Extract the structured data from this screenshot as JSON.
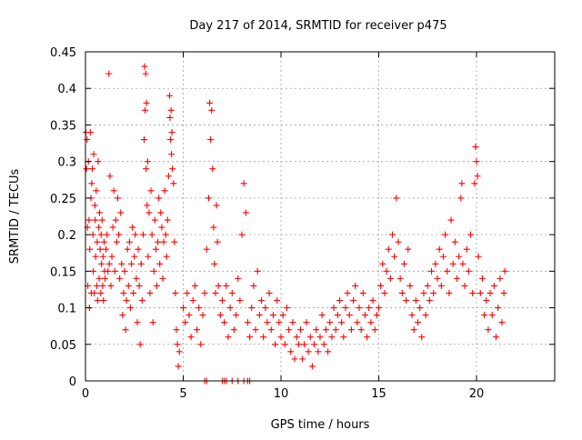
{
  "chart_data": {
    "type": "scatter",
    "title": "Day 217 of 2014, SRMTID for receiver p475",
    "xlabel": "GPS time / hours",
    "ylabel": "SRMTID / TECUs",
    "xlim": [
      0,
      24
    ],
    "ylim": [
      0,
      0.45
    ],
    "x_ticks": [
      0,
      5,
      10,
      15,
      20
    ],
    "y_ticks": [
      0,
      0.05,
      0.1,
      0.15,
      0.2,
      0.25,
      0.3,
      0.35,
      0.4,
      0.45
    ],
    "x_tick_labels": [
      "0",
      "5",
      "10",
      "15",
      "20"
    ],
    "y_tick_labels": [
      "0",
      "0.05",
      "0.1",
      "0.15",
      "0.2",
      "0.25",
      "0.3",
      "0.35",
      "0.4",
      "0.45"
    ],
    "grid": true,
    "marker": "+",
    "color": "#ff0000",
    "series": [
      {
        "name": "SRMTID p475",
        "points": [
          [
            0.02,
            0.34
          ],
          [
            0.05,
            0.29
          ],
          [
            0.08,
            0.33
          ],
          [
            0.1,
            0.21
          ],
          [
            0.12,
            0.13
          ],
          [
            0.15,
            0.3
          ],
          [
            0.18,
            0.22
          ],
          [
            0.2,
            0.1
          ],
          [
            0.22,
            0.18
          ],
          [
            0.25,
            0.34
          ],
          [
            0.28,
            0.25
          ],
          [
            0.3,
            0.12
          ],
          [
            0.32,
            0.27
          ],
          [
            0.35,
            0.29
          ],
          [
            0.38,
            0.2
          ],
          [
            0.4,
            0.15
          ],
          [
            0.42,
            0.31
          ],
          [
            0.45,
            0.12
          ],
          [
            0.48,
            0.24
          ],
          [
            0.5,
            0.22
          ],
          [
            0.52,
            0.17
          ],
          [
            0.55,
            0.26
          ],
          [
            0.58,
            0.13
          ],
          [
            0.6,
            0.19
          ],
          [
            0.62,
            0.11
          ],
          [
            0.65,
            0.3
          ],
          [
            0.68,
            0.21
          ],
          [
            0.7,
            0.14
          ],
          [
            0.72,
            0.23
          ],
          [
            0.75,
            0.18
          ],
          [
            0.78,
            0.12
          ],
          [
            0.8,
            0.2
          ],
          [
            0.82,
            0.16
          ],
          [
            0.85,
            0.22
          ],
          [
            0.88,
            0.13
          ],
          [
            0.9,
            0.17
          ],
          [
            0.92,
            0.11
          ],
          [
            0.95,
            0.19
          ],
          [
            0.98,
            0.15
          ],
          [
            1.0,
            0.14
          ],
          [
            1.05,
            0.18
          ],
          [
            1.1,
            0.2
          ],
          [
            1.15,
            0.15
          ],
          [
            1.2,
            0.42
          ],
          [
            1.22,
            0.16
          ],
          [
            1.25,
            0.28
          ],
          [
            1.3,
            0.13
          ],
          [
            1.35,
            0.17
          ],
          [
            1.4,
            0.21
          ],
          [
            1.45,
            0.26
          ],
          [
            1.5,
            0.15
          ],
          [
            1.55,
            0.22
          ],
          [
            1.6,
            0.19
          ],
          [
            1.65,
            0.25
          ],
          [
            1.7,
            0.2
          ],
          [
            1.75,
            0.14
          ],
          [
            1.8,
            0.23
          ],
          [
            1.85,
            0.16
          ],
          [
            1.9,
            0.09
          ],
          [
            1.95,
            0.12
          ],
          [
            2.0,
            0.15
          ],
          [
            2.05,
            0.07
          ],
          [
            2.1,
            0.11
          ],
          [
            2.15,
            0.18
          ],
          [
            2.2,
            0.13
          ],
          [
            2.25,
            0.19
          ],
          [
            2.3,
            0.1
          ],
          [
            2.35,
            0.16
          ],
          [
            2.4,
            0.21
          ],
          [
            2.45,
            0.12
          ],
          [
            2.5,
            0.17
          ],
          [
            2.55,
            0.2
          ],
          [
            2.6,
            0.14
          ],
          [
            2.65,
            0.08
          ],
          [
            2.7,
            0.18
          ],
          [
            2.75,
            0.13
          ],
          [
            2.8,
            0.05
          ],
          [
            2.85,
            0.16
          ],
          [
            2.9,
            0.11
          ],
          [
            2.95,
            0.2
          ],
          [
            3.0,
            0.33
          ],
          [
            3.02,
            0.43
          ],
          [
            3.05,
            0.37
          ],
          [
            3.08,
            0.42
          ],
          [
            3.1,
            0.29
          ],
          [
            3.12,
            0.38
          ],
          [
            3.15,
            0.24
          ],
          [
            3.18,
            0.3
          ],
          [
            3.2,
            0.17
          ],
          [
            3.25,
            0.23
          ],
          [
            3.3,
            0.12
          ],
          [
            3.35,
            0.26
          ],
          [
            3.4,
            0.2
          ],
          [
            3.45,
            0.08
          ],
          [
            3.5,
            0.15
          ],
          [
            3.55,
            0.22
          ],
          [
            3.6,
            0.18
          ],
          [
            3.65,
            0.13
          ],
          [
            3.7,
            0.19
          ],
          [
            3.75,
            0.25
          ],
          [
            3.8,
            0.16
          ],
          [
            3.85,
            0.23
          ],
          [
            3.9,
            0.21
          ],
          [
            3.95,
            0.14
          ],
          [
            4.0,
            0.19
          ],
          [
            4.05,
            0.26
          ],
          [
            4.1,
            0.2
          ],
          [
            4.15,
            0.17
          ],
          [
            4.2,
            0.22
          ],
          [
            4.25,
            0.28
          ],
          [
            4.3,
            0.39
          ],
          [
            4.32,
            0.36
          ],
          [
            4.35,
            0.33
          ],
          [
            4.38,
            0.37
          ],
          [
            4.4,
            0.31
          ],
          [
            4.42,
            0.34
          ],
          [
            4.45,
            0.29
          ],
          [
            4.5,
            0.27
          ],
          [
            4.55,
            0.19
          ],
          [
            4.6,
            0.12
          ],
          [
            4.65,
            0.07
          ],
          [
            4.7,
            0.05
          ],
          [
            4.75,
            0.02
          ],
          [
            4.8,
            0.04
          ],
          [
            5.0,
            0.1
          ],
          [
            5.1,
            0.08
          ],
          [
            5.2,
            0.12
          ],
          [
            5.3,
            0.09
          ],
          [
            5.4,
            0.06
          ],
          [
            5.5,
            0.11
          ],
          [
            5.6,
            0.13
          ],
          [
            5.7,
            0.07
          ],
          [
            5.8,
            0.1
          ],
          [
            5.9,
            0.05
          ],
          [
            6.0,
            0.09
          ],
          [
            6.1,
            0.12
          ],
          [
            6.2,
            0.18
          ],
          [
            6.3,
            0.25
          ],
          [
            6.35,
            0.38
          ],
          [
            6.4,
            0.33
          ],
          [
            6.45,
            0.37
          ],
          [
            6.5,
            0.29
          ],
          [
            6.55,
            0.21
          ],
          [
            6.6,
            0.16
          ],
          [
            6.65,
            0.12
          ],
          [
            6.7,
            0.24
          ],
          [
            6.75,
            0.19
          ],
          [
            6.8,
            0.13
          ],
          [
            6.9,
            0.09
          ],
          [
            7.0,
            0.11
          ],
          [
            7.1,
            0.08
          ],
          [
            7.2,
            0.13
          ],
          [
            7.3,
            0.06
          ],
          [
            7.4,
            0.1
          ],
          [
            7.5,
            0.12
          ],
          [
            7.6,
            0.07
          ],
          [
            7.7,
            0.09
          ],
          [
            7.8,
            0.14
          ],
          [
            7.9,
            0.11
          ],
          [
            8.0,
            0.2
          ],
          [
            8.1,
            0.27
          ],
          [
            8.2,
            0.23
          ],
          [
            8.3,
            0.08
          ],
          [
            8.4,
            0.06
          ],
          [
            8.5,
            0.1
          ],
          [
            8.6,
            0.13
          ],
          [
            8.7,
            0.07
          ],
          [
            8.8,
            0.15
          ],
          [
            8.9,
            0.09
          ],
          [
            9.0,
            0.11
          ],
          [
            9.1,
            0.06
          ],
          [
            9.2,
            0.1
          ],
          [
            9.3,
            0.08
          ],
          [
            9.4,
            0.12
          ],
          [
            9.5,
            0.07
          ],
          [
            9.6,
            0.09
          ],
          [
            9.7,
            0.05
          ],
          [
            9.8,
            0.11
          ],
          [
            9.9,
            0.08
          ],
          [
            10.0,
            0.06
          ],
          [
            10.1,
            0.09
          ],
          [
            10.2,
            0.05
          ],
          [
            10.3,
            0.1
          ],
          [
            10.4,
            0.07
          ],
          [
            10.5,
            0.04
          ],
          [
            10.6,
            0.08
          ],
          [
            10.7,
            0.03
          ],
          [
            10.8,
            0.06
          ],
          [
            10.9,
            0.05
          ],
          [
            11.0,
            0.07
          ],
          [
            11.1,
            0.03
          ],
          [
            11.2,
            0.05
          ],
          [
            11.3,
            0.08
          ],
          [
            11.4,
            0.04
          ],
          [
            11.5,
            0.06
          ],
          [
            11.6,
            0.02
          ],
          [
            11.7,
            0.05
          ],
          [
            11.8,
            0.07
          ],
          [
            11.9,
            0.04
          ],
          [
            12.0,
            0.06
          ],
          [
            12.1,
            0.09
          ],
          [
            12.2,
            0.05
          ],
          [
            12.3,
            0.07
          ],
          [
            12.4,
            0.04
          ],
          [
            12.5,
            0.08
          ],
          [
            12.6,
            0.06
          ],
          [
            12.7,
            0.1
          ],
          [
            12.8,
            0.07
          ],
          [
            12.9,
            0.09
          ],
          [
            13.0,
            0.11
          ],
          [
            13.1,
            0.08
          ],
          [
            13.2,
            0.06
          ],
          [
            13.3,
            0.1
          ],
          [
            13.4,
            0.12
          ],
          [
            13.5,
            0.09
          ],
          [
            13.6,
            0.07
          ],
          [
            13.7,
            0.11
          ],
          [
            13.8,
            0.13
          ],
          [
            13.9,
            0.08
          ],
          [
            14.0,
            0.1
          ],
          [
            14.1,
            0.07
          ],
          [
            14.2,
            0.12
          ],
          [
            14.3,
            0.09
          ],
          [
            14.4,
            0.06
          ],
          [
            14.5,
            0.1
          ],
          [
            14.6,
            0.08
          ],
          [
            14.7,
            0.11
          ],
          [
            14.8,
            0.07
          ],
          [
            14.9,
            0.09
          ],
          [
            15.0,
            0.1
          ],
          [
            15.1,
            0.13
          ],
          [
            15.2,
            0.16
          ],
          [
            15.3,
            0.12
          ],
          [
            15.4,
            0.15
          ],
          [
            15.5,
            0.18
          ],
          [
            15.6,
            0.14
          ],
          [
            15.7,
            0.2
          ],
          [
            15.8,
            0.17
          ],
          [
            15.9,
            0.25
          ],
          [
            16.0,
            0.19
          ],
          [
            16.1,
            0.14
          ],
          [
            16.2,
            0.12
          ],
          [
            16.3,
            0.16
          ],
          [
            16.4,
            0.11
          ],
          [
            16.5,
            0.18
          ],
          [
            16.6,
            0.13
          ],
          [
            16.7,
            0.09
          ],
          [
            16.8,
            0.07
          ],
          [
            16.9,
            0.11
          ],
          [
            17.0,
            0.08
          ],
          [
            17.1,
            0.1
          ],
          [
            17.2,
            0.06
          ],
          [
            17.3,
            0.12
          ],
          [
            17.4,
            0.09
          ],
          [
            17.5,
            0.13
          ],
          [
            17.6,
            0.11
          ],
          [
            17.7,
            0.15
          ],
          [
            17.8,
            0.12
          ],
          [
            17.9,
            0.16
          ],
          [
            18.0,
            0.14
          ],
          [
            18.1,
            0.18
          ],
          [
            18.2,
            0.13
          ],
          [
            18.3,
            0.17
          ],
          [
            18.4,
            0.2
          ],
          [
            18.5,
            0.15
          ],
          [
            18.6,
            0.12
          ],
          [
            18.7,
            0.22
          ],
          [
            18.8,
            0.16
          ],
          [
            18.9,
            0.19
          ],
          [
            19.0,
            0.14
          ],
          [
            19.1,
            0.17
          ],
          [
            19.2,
            0.25
          ],
          [
            19.25,
            0.27
          ],
          [
            19.3,
            0.16
          ],
          [
            19.4,
            0.13
          ],
          [
            19.5,
            0.18
          ],
          [
            19.6,
            0.15
          ],
          [
            19.7,
            0.2
          ],
          [
            19.8,
            0.12
          ],
          [
            19.9,
            0.27
          ],
          [
            19.95,
            0.32
          ],
          [
            20.0,
            0.3
          ],
          [
            20.05,
            0.28
          ],
          [
            20.1,
            0.17
          ],
          [
            20.2,
            0.12
          ],
          [
            20.3,
            0.14
          ],
          [
            20.4,
            0.09
          ],
          [
            20.5,
            0.11
          ],
          [
            20.6,
            0.07
          ],
          [
            20.7,
            0.12
          ],
          [
            20.8,
            0.09
          ],
          [
            20.9,
            0.13
          ],
          [
            21.0,
            0.06
          ],
          [
            21.1,
            0.1
          ],
          [
            21.2,
            0.14
          ],
          [
            21.3,
            0.08
          ],
          [
            21.4,
            0.12
          ],
          [
            21.45,
            0.15
          ],
          [
            6.1,
            0.0
          ],
          [
            6.2,
            0.0
          ],
          [
            7.0,
            0.0
          ],
          [
            7.1,
            0.0
          ],
          [
            7.2,
            0.0
          ],
          [
            7.5,
            0.0
          ],
          [
            7.8,
            0.0
          ],
          [
            8.1,
            0.0
          ],
          [
            8.3,
            0.0
          ],
          [
            8.4,
            0.0
          ]
        ]
      }
    ]
  }
}
